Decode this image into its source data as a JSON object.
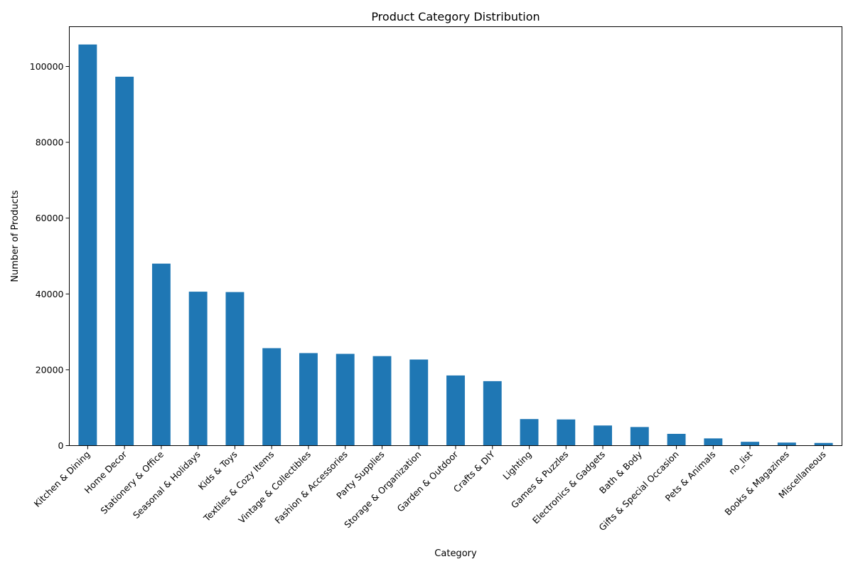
{
  "chart_data": {
    "type": "bar",
    "title": "Product Category Distribution",
    "xlabel": "Category",
    "ylabel": "Number of Products",
    "ylim": [
      0,
      110500
    ],
    "yticks": [
      0,
      20000,
      40000,
      60000,
      80000,
      100000
    ],
    "grid": false,
    "legend": "none",
    "bar_color": "#1f77b4",
    "categories": [
      "Kitchen & Dining",
      "Home Decor",
      "Stationery & Office",
      "Seasonal & Holidays",
      "Kids & Toys",
      "Textiles & Cozy Items",
      "Vintage & Collectibles",
      "Fashion & Accessories",
      "Party Supplies",
      "Storage & Organization",
      "Garden & Outdoor",
      "Crafts & DIY",
      "Lighting",
      "Games & Puzzles",
      "Electronics & Gadgets",
      "Bath & Body",
      "Gifts & Special Occasion",
      "Pets & Animals",
      "no_list",
      "Books & Magazines",
      "Miscellaneous"
    ],
    "values": [
      105800,
      97300,
      48000,
      40600,
      40500,
      25700,
      24400,
      24200,
      23600,
      22700,
      18500,
      17000,
      7000,
      6900,
      5300,
      4900,
      3100,
      1900,
      1000,
      800,
      700
    ]
  }
}
